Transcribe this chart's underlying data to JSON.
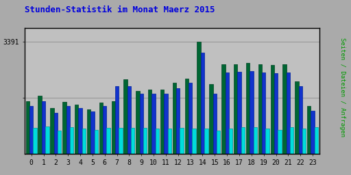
{
  "title": "Stunden-Statistik im Monat Maerz 2015",
  "title_color": "#0000dd",
  "ylabel_right": "Seiten / Dateien / Anfragen",
  "ylabel_right_color": "#009900",
  "hours": [
    0,
    1,
    2,
    3,
    4,
    5,
    6,
    7,
    8,
    9,
    10,
    11,
    12,
    13,
    14,
    15,
    16,
    17,
    18,
    19,
    20,
    21,
    22,
    23
  ],
  "seiten": [
    1600,
    1750,
    1380,
    1580,
    1500,
    1350,
    1560,
    1600,
    2250,
    1900,
    1950,
    1950,
    2150,
    2280,
    3391,
    2100,
    2700,
    2700,
    2750,
    2700,
    2680,
    2700,
    2200,
    1450
  ],
  "dateien": [
    1450,
    1600,
    1250,
    1450,
    1380,
    1280,
    1450,
    2050,
    2050,
    1820,
    1820,
    1820,
    1980,
    2150,
    3050,
    1820,
    2450,
    2480,
    2500,
    2450,
    2430,
    2450,
    2050,
    1300
  ],
  "anfragen": [
    780,
    830,
    700,
    800,
    760,
    720,
    790,
    790,
    790,
    790,
    760,
    760,
    790,
    760,
    760,
    700,
    760,
    800,
    800,
    770,
    730,
    800,
    760,
    810
  ],
  "color_seiten": "#006633",
  "color_dateien": "#1133cc",
  "color_anfragen": "#00dddd",
  "edge_seiten": "#004422",
  "edge_dateien": "#002299",
  "edge_anfragen": "#009999",
  "bg_color": "#aaaaaa",
  "plot_bg": "#c0c0c0",
  "border_color": "#000000",
  "ytick_val": 3391,
  "ymax": 3800,
  "bar_width": 0.3,
  "xlim_left": -0.55,
  "xlim_right": 23.55
}
